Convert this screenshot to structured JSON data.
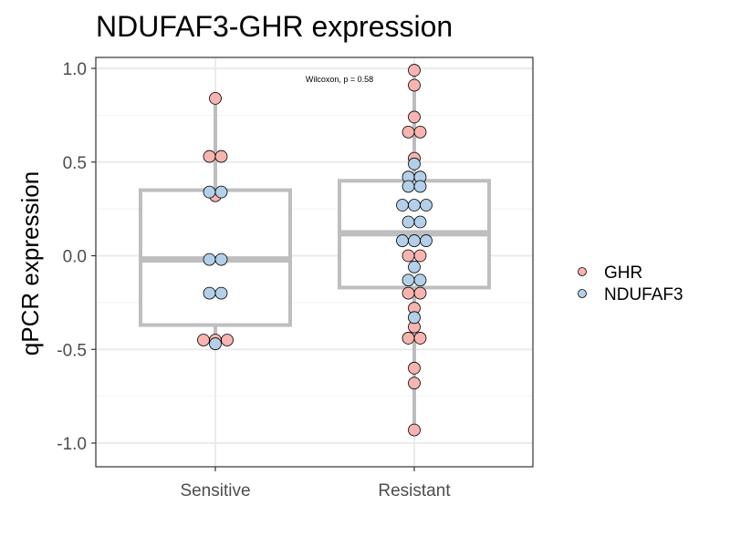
{
  "chart_data": {
    "type": "boxplot",
    "title": "NDUFAF3-GHR expression",
    "xlabel": "",
    "ylabel": "qPCR expression",
    "categories": [
      "Sensitive",
      "Resistant"
    ],
    "ylim": [
      -1.05,
      1.1
    ],
    "yticks": [
      1.0,
      0.5,
      0.0,
      -0.5,
      -1.0
    ],
    "ytick_labels": [
      "1.0",
      "0.5",
      "0.0",
      "-0.5",
      "-1.0"
    ],
    "grid": true,
    "annotation": "Wilcoxon, p = 0.58",
    "legend_position": "right",
    "boxes": [
      {
        "category": "Sensitive",
        "q1": -0.37,
        "median": -0.02,
        "q3": 0.35,
        "whisker_low": -0.46,
        "whisker_high": 0.84
      },
      {
        "category": "Resistant",
        "q1": -0.17,
        "median": 0.12,
        "q3": 0.4,
        "whisker_low": -0.93,
        "whisker_high": 0.99
      }
    ],
    "series": [
      {
        "name": "GHR",
        "color": "#f8b4b0",
        "points": [
          {
            "category": "Sensitive",
            "values": [
              0.84,
              0.53,
              0.53,
              0.32,
              -0.45,
              -0.45,
              -0.45
            ]
          },
          {
            "category": "Resistant",
            "values": [
              0.99,
              0.91,
              0.74,
              0.66,
              0.66,
              0.52,
              0.0,
              0.0,
              -0.2,
              -0.2,
              -0.28,
              -0.38,
              -0.44,
              -0.44,
              -0.6,
              -0.68,
              -0.93
            ]
          }
        ]
      },
      {
        "name": "NDUFAF3",
        "color": "#b4cfe8",
        "points": [
          {
            "category": "Sensitive",
            "values": [
              0.34,
              0.34,
              -0.02,
              -0.02,
              -0.2,
              -0.2,
              -0.47
            ]
          },
          {
            "category": "Resistant",
            "values": [
              0.49,
              0.42,
              0.42,
              0.37,
              0.37,
              0.27,
              0.27,
              0.27,
              0.18,
              0.18,
              0.08,
              0.08,
              0.08,
              -0.06,
              -0.13,
              -0.13,
              -0.33
            ]
          }
        ]
      }
    ]
  }
}
